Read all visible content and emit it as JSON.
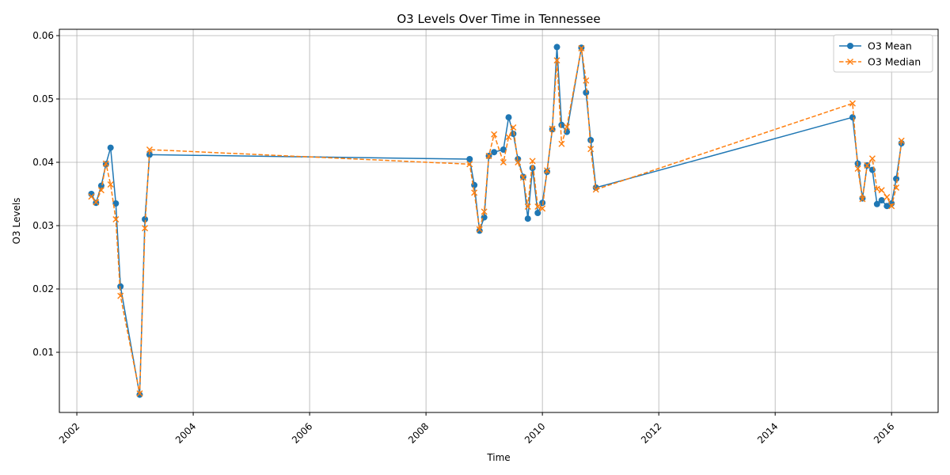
{
  "chart_data": {
    "type": "line",
    "title": "O3 Levels Over Time in Tennessee",
    "xlabel": "Time",
    "ylabel": "O3 Levels",
    "xlim": [
      2001.7,
      2016.8
    ],
    "ylim": [
      0.0005,
      0.061
    ],
    "x_ticks": [
      2002,
      2004,
      2006,
      2008,
      2010,
      2012,
      2014,
      2016
    ],
    "x_tick_labels": [
      "2002",
      "2004",
      "2006",
      "2008",
      "2010",
      "2012",
      "2014",
      "2016"
    ],
    "y_ticks": [
      0.01,
      0.02,
      0.03,
      0.04,
      0.05,
      0.06
    ],
    "y_tick_labels": [
      "0.01",
      "0.02",
      "0.03",
      "0.04",
      "0.05",
      "0.06"
    ],
    "grid": true,
    "legend_position": "top-right",
    "series": [
      {
        "name": "O3 Mean",
        "color": "#1f77b4",
        "style": "solid",
        "marker": "circle",
        "x": [
          2002.25,
          2002.33,
          2002.42,
          2002.5,
          2002.58,
          2002.67,
          2002.75,
          2003.08,
          2003.17,
          2003.25,
          2008.75,
          2008.83,
          2008.92,
          2009.0,
          2009.08,
          2009.17,
          2009.33,
          2009.42,
          2009.5,
          2009.58,
          2009.67,
          2009.75,
          2009.83,
          2009.92,
          2010.0,
          2010.08,
          2010.17,
          2010.25,
          2010.33,
          2010.42,
          2010.67,
          2010.75,
          2010.83,
          2010.92,
          2015.33,
          2015.42,
          2015.5,
          2015.58,
          2015.67,
          2015.75,
          2015.83,
          2015.92,
          2016.0,
          2016.08,
          2016.17
        ],
        "y": [
          0.035,
          0.0336,
          0.0363,
          0.0397,
          0.0423,
          0.0335,
          0.0204,
          0.0033,
          0.031,
          0.0412,
          0.0405,
          0.0364,
          0.0292,
          0.0313,
          0.041,
          0.0416,
          0.042,
          0.0471,
          0.0445,
          0.0405,
          0.0377,
          0.0311,
          0.0391,
          0.032,
          0.0336,
          0.0385,
          0.0452,
          0.0582,
          0.0459,
          0.0448,
          0.0581,
          0.051,
          0.0435,
          0.036,
          0.0471,
          0.0398,
          0.0343,
          0.0395,
          0.0388,
          0.0334,
          0.034,
          0.0331,
          0.0335,
          0.0374,
          0.043
        ]
      },
      {
        "name": "O3 Median",
        "color": "#ff7f0e",
        "style": "dashed",
        "marker": "x",
        "x": [
          2002.25,
          2002.33,
          2002.42,
          2002.5,
          2002.58,
          2002.67,
          2002.75,
          2003.08,
          2003.17,
          2003.25,
          2008.75,
          2008.83,
          2008.92,
          2009.0,
          2009.08,
          2009.17,
          2009.33,
          2009.42,
          2009.5,
          2009.58,
          2009.67,
          2009.75,
          2009.83,
          2009.92,
          2010.0,
          2010.08,
          2010.17,
          2010.25,
          2010.33,
          2010.42,
          2010.67,
          2010.75,
          2010.83,
          2010.92,
          2015.33,
          2015.42,
          2015.5,
          2015.58,
          2015.67,
          2015.75,
          2015.83,
          2015.92,
          2016.0,
          2016.08,
          2016.17
        ],
        "y": [
          0.0346,
          0.0337,
          0.0356,
          0.0398,
          0.0365,
          0.031,
          0.0189,
          0.0035,
          0.0296,
          0.042,
          0.0397,
          0.0352,
          0.0294,
          0.0322,
          0.041,
          0.0444,
          0.04,
          0.044,
          0.0455,
          0.04,
          0.0376,
          0.033,
          0.0402,
          0.033,
          0.0327,
          0.0387,
          0.0453,
          0.0561,
          0.0429,
          0.0456,
          0.058,
          0.0529,
          0.0421,
          0.0357,
          0.0493,
          0.039,
          0.0342,
          0.0395,
          0.0406,
          0.0358,
          0.0356,
          0.0345,
          0.0331,
          0.036,
          0.0434
        ]
      }
    ]
  }
}
